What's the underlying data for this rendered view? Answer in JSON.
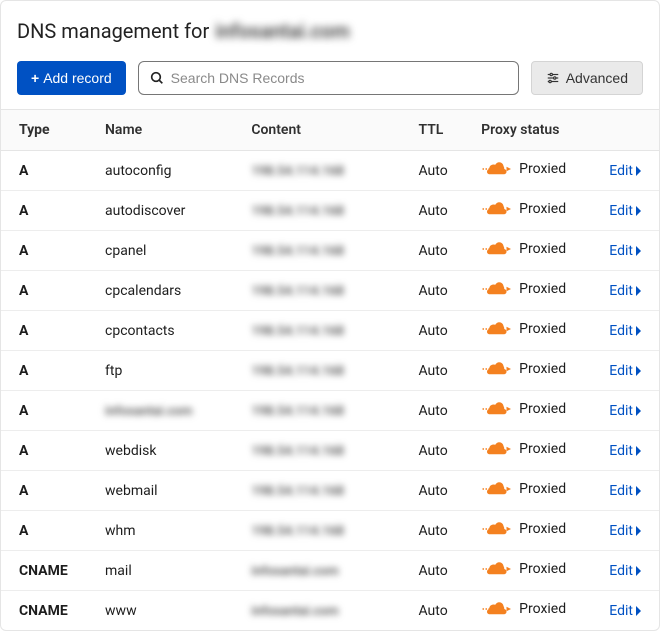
{
  "header": {
    "title_prefix": "DNS management for",
    "domain_masked": "infosantai.com"
  },
  "toolbar": {
    "add_record_label": "Add record",
    "search_placeholder": "Search DNS Records",
    "advanced_label": "Advanced"
  },
  "colors": {
    "primary_button_bg": "#0051c3",
    "link_color": "#0051c3",
    "cloud_orange": "#f48120",
    "border": "#e5e5e5",
    "header_bg": "#fafafa"
  },
  "table": {
    "columns": {
      "type": "Type",
      "name": "Name",
      "content": "Content",
      "ttl": "TTL",
      "proxy": "Proxy status"
    },
    "edit_label": "Edit",
    "proxied_label": "Proxied",
    "rows": [
      {
        "type": "A",
        "name": "autoconfig",
        "content_masked": "198.54.114.168",
        "ttl": "Auto",
        "name_blurred": false
      },
      {
        "type": "A",
        "name": "autodiscover",
        "content_masked": "198.54.114.168",
        "ttl": "Auto",
        "name_blurred": false
      },
      {
        "type": "A",
        "name": "cpanel",
        "content_masked": "198.54.114.168",
        "ttl": "Auto",
        "name_blurred": false
      },
      {
        "type": "A",
        "name": "cpcalendars",
        "content_masked": "198.54.114.168",
        "ttl": "Auto",
        "name_blurred": false
      },
      {
        "type": "A",
        "name": "cpcontacts",
        "content_masked": "198.54.114.168",
        "ttl": "Auto",
        "name_blurred": false
      },
      {
        "type": "A",
        "name": "ftp",
        "content_masked": "198.54.114.168",
        "ttl": "Auto",
        "name_blurred": false
      },
      {
        "type": "A",
        "name": "infosantai.com",
        "content_masked": "198.54.114.168",
        "ttl": "Auto",
        "name_blurred": true
      },
      {
        "type": "A",
        "name": "webdisk",
        "content_masked": "198.54.114.168",
        "ttl": "Auto",
        "name_blurred": false
      },
      {
        "type": "A",
        "name": "webmail",
        "content_masked": "198.54.114.168",
        "ttl": "Auto",
        "name_blurred": false
      },
      {
        "type": "A",
        "name": "whm",
        "content_masked": "198.54.114.168",
        "ttl": "Auto",
        "name_blurred": false
      },
      {
        "type": "CNAME",
        "name": "mail",
        "content_masked": "infosantai.com",
        "ttl": "Auto",
        "name_blurred": false
      },
      {
        "type": "CNAME",
        "name": "www",
        "content_masked": "infosantai.com",
        "ttl": "Auto",
        "name_blurred": false
      }
    ]
  }
}
